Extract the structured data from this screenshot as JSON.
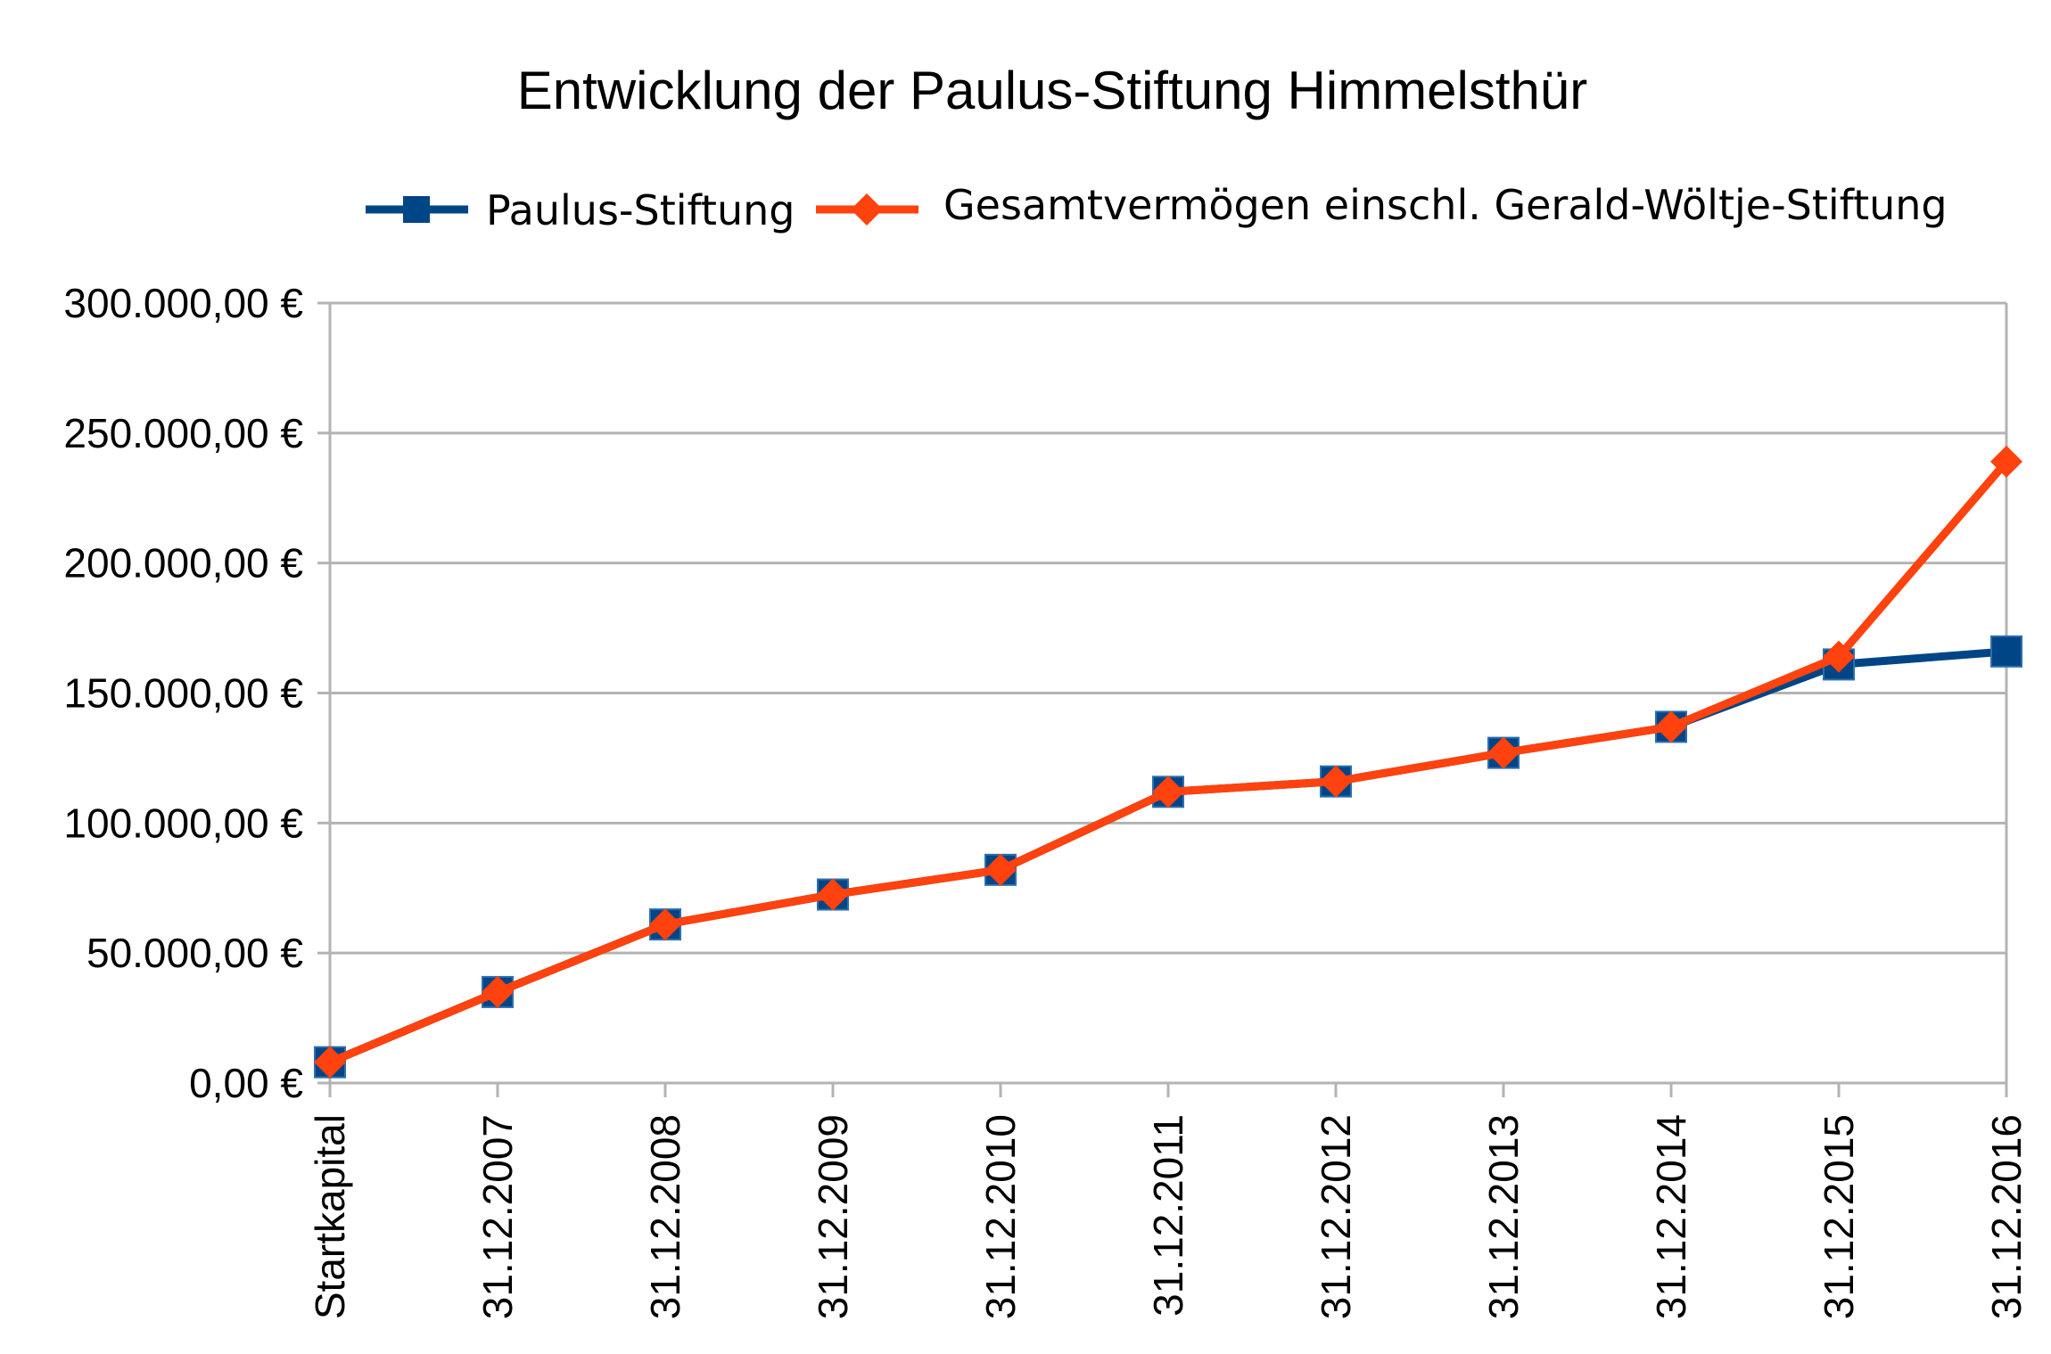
{
  "chart_data": {
    "type": "line",
    "title": "Entwicklung der Paulus-Stiftung Himmelsthür",
    "xlabel": "",
    "ylabel": "",
    "categories": [
      "Startkapital",
      "31.12.2007",
      "31.12.2008",
      "31.12.2009",
      "31.12.2010",
      "31.12.2011",
      "31.12.2012",
      "31.12.2013",
      "31.12.2014",
      "31.12.2015",
      "31.12.2016"
    ],
    "ylim": [
      0,
      300000
    ],
    "y_ticks": [
      0,
      50000,
      100000,
      150000,
      200000,
      250000,
      300000
    ],
    "y_tick_labels": [
      "0,00 €",
      "50.000,00 €",
      "100.000,00 €",
      "150.000,00 €",
      "200.000,00 €",
      "250.000,00 €",
      "300.000,00 €"
    ],
    "grid": true,
    "legend_position": "top",
    "series": [
      {
        "name": "Paulus-Stiftung",
        "color": "#004586",
        "marker": "square",
        "values": [
          8000,
          35000,
          61000,
          72500,
          82000,
          112000,
          116000,
          127000,
          137000,
          161000,
          166000
        ]
      },
      {
        "name": "Gesamtvermögen einschl. Gerald-Wöltje-Stiftung",
        "color": "#ff420e",
        "marker": "diamond",
        "values": [
          8000,
          35000,
          61000,
          72500,
          82000,
          112000,
          116000,
          127000,
          137000,
          164000,
          239000
        ]
      }
    ]
  }
}
